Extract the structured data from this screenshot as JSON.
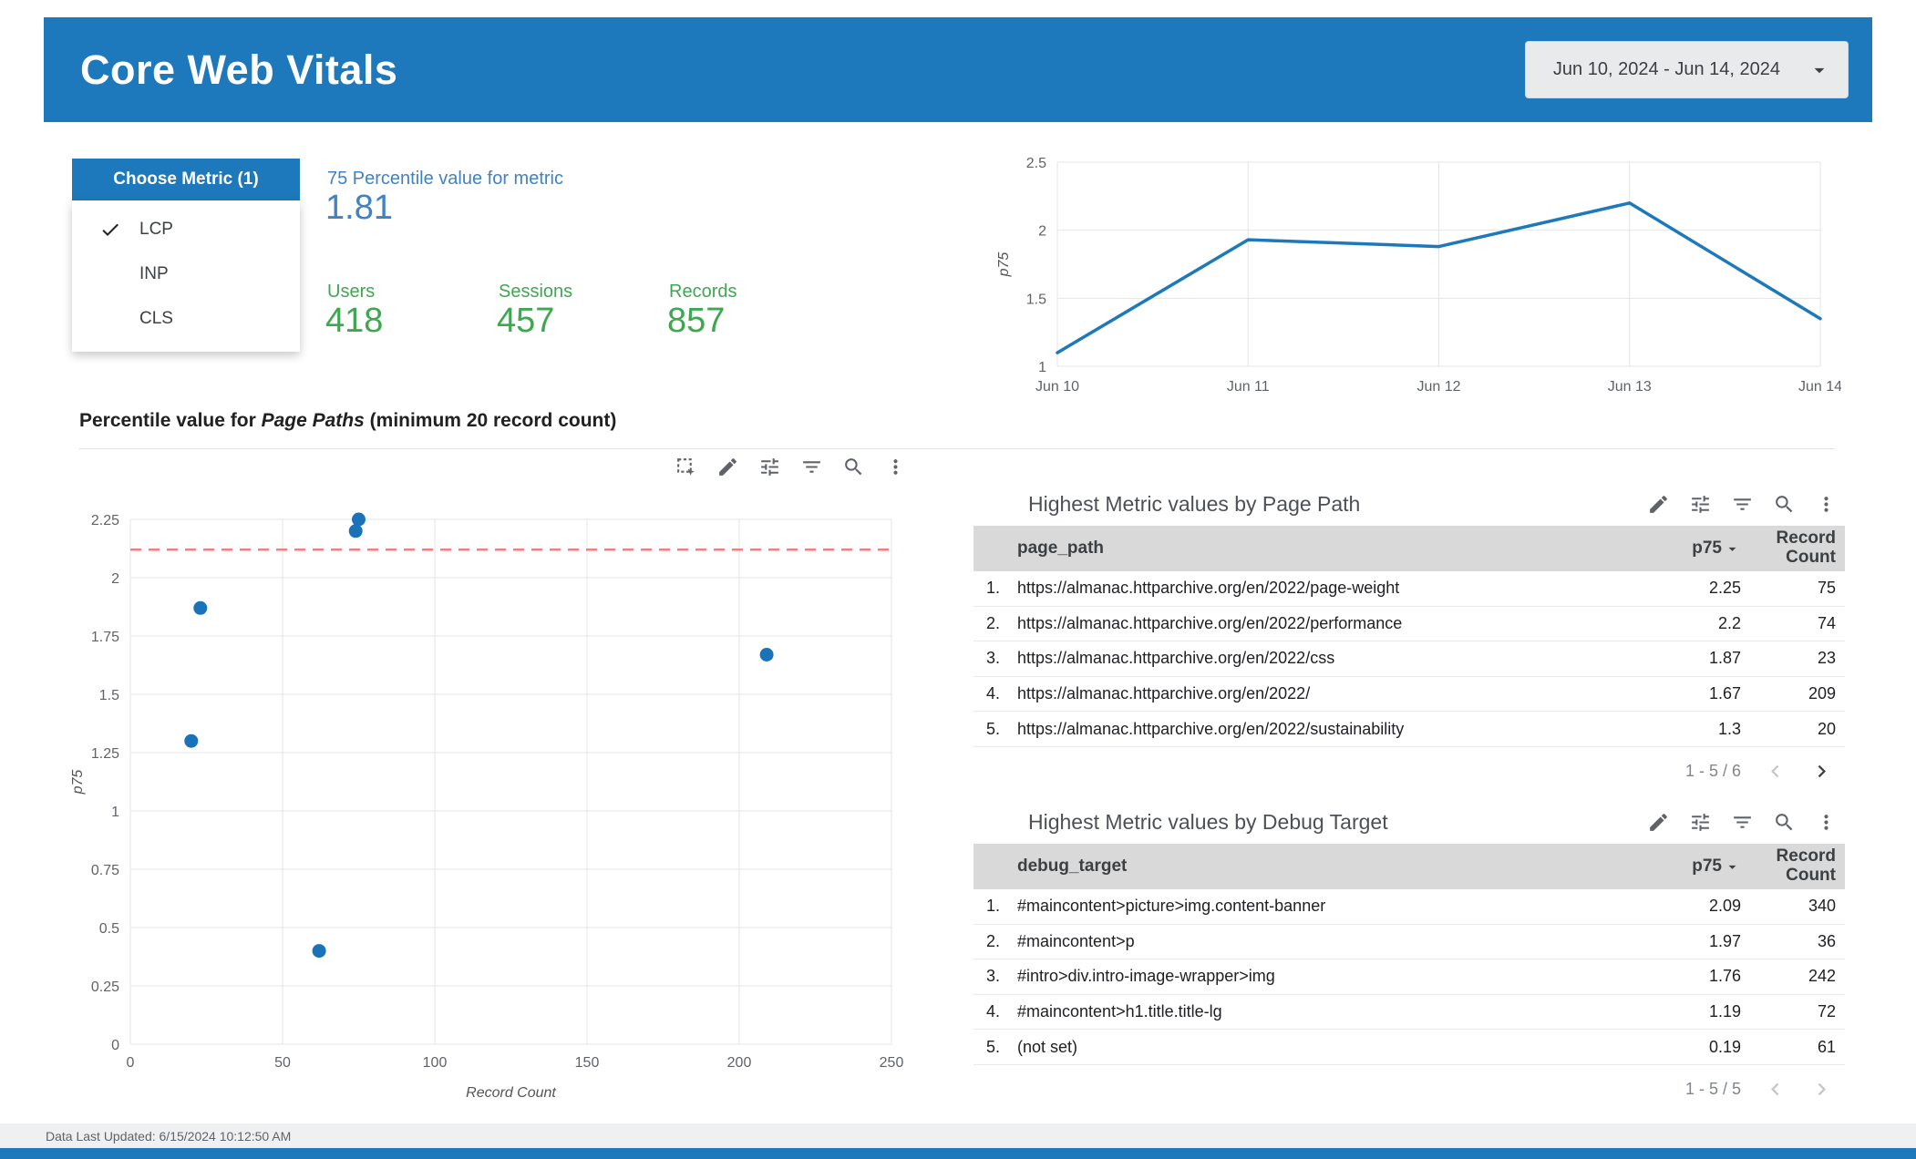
{
  "colors": {
    "header_blue": "#1d79bb",
    "accent_blue": "#4182c4",
    "green": "#3fa750",
    "line_blue": "#1d79bb",
    "point_blue": "#1a73b8",
    "ref_red": "#f0807f",
    "table_header_bg": "#d9d9d9"
  },
  "header": {
    "title": "Core Web Vitals",
    "date_range": "Jun 10, 2024 - Jun 14, 2024"
  },
  "metric_selector": {
    "label": "Choose Metric (1)",
    "options": [
      {
        "label": "LCP",
        "selected": true
      },
      {
        "label": "INP",
        "selected": false
      },
      {
        "label": "CLS",
        "selected": false
      }
    ]
  },
  "scorecards": {
    "percentile": {
      "label": "75 Percentile value for metric",
      "value": "1.81"
    },
    "users": {
      "label": "Users",
      "value": "418"
    },
    "sessions": {
      "label": "Sessions",
      "value": "457"
    },
    "records": {
      "label": "Records",
      "value": "857"
    }
  },
  "section": {
    "title_prefix": "Percentile value for ",
    "title_italic": "Page Paths",
    "title_suffix": " (minimum 20 record count)"
  },
  "chart_toolbar": [
    "marquee-select",
    "edit",
    "tune",
    "filter",
    "zoom",
    "more-vert"
  ],
  "table_toolbar": [
    "edit",
    "tune",
    "filter",
    "zoom",
    "more-vert"
  ],
  "chart_data": [
    {
      "type": "line",
      "title": "p75 by date",
      "x": [
        "Jun 10",
        "Jun 11",
        "Jun 12",
        "Jun 13",
        "Jun 14"
      ],
      "values": [
        1.1,
        1.93,
        1.88,
        2.2,
        1.35
      ],
      "ylabel": "p75",
      "ylim": [
        1,
        2.5
      ],
      "yticks": [
        2.5,
        2,
        1.5,
        1
      ],
      "grid": true,
      "legend": false
    },
    {
      "type": "scatter",
      "xlabel": "Record Count",
      "ylabel": "p75",
      "xlim": [
        0,
        250
      ],
      "ylim": [
        0,
        2.25
      ],
      "xticks": [
        0,
        50,
        100,
        150,
        200,
        250
      ],
      "yticks": [
        0,
        0.25,
        0.5,
        0.75,
        1,
        1.25,
        1.5,
        1.75,
        2,
        2.25
      ],
      "points": [
        {
          "x": 75,
          "y": 2.25
        },
        {
          "x": 74,
          "y": 2.2
        },
        {
          "x": 23,
          "y": 1.87
        },
        {
          "x": 209,
          "y": 1.67
        },
        {
          "x": 20,
          "y": 1.3
        },
        {
          "x": 62,
          "y": 0.4
        }
      ],
      "reference_line": {
        "y": 2.12,
        "style": "dashed"
      },
      "grid": true
    }
  ],
  "page_path_table": {
    "title": "Highest Metric values by Page Path",
    "columns": [
      "page_path",
      "p75",
      "Record Count"
    ],
    "rows": [
      [
        "https://almanac.httparchive.org/en/2022/page-weight",
        "2.25",
        "75"
      ],
      [
        "https://almanac.httparchive.org/en/2022/performance",
        "2.2",
        "74"
      ],
      [
        "https://almanac.httparchive.org/en/2022/css",
        "1.87",
        "23"
      ],
      [
        "https://almanac.httparchive.org/en/2022/",
        "1.67",
        "209"
      ],
      [
        "https://almanac.httparchive.org/en/2022/sustainability",
        "1.3",
        "20"
      ]
    ],
    "pagination": "1 - 5 / 6",
    "prev_enabled": false,
    "next_enabled": true
  },
  "debug_target_table": {
    "title": "Highest Metric values by Debug Target",
    "columns": [
      "debug_target",
      "p75",
      "Record Count"
    ],
    "rows": [
      [
        "#maincontent>picture>img.content-banner",
        "2.09",
        "340"
      ],
      [
        "#maincontent>p",
        "1.97",
        "36"
      ],
      [
        "#intro>div.intro-image-wrapper>img",
        "1.76",
        "242"
      ],
      [
        "#maincontent>h1.title.title-lg",
        "1.19",
        "72"
      ],
      [
        "(not set)",
        "0.19",
        "61"
      ]
    ],
    "pagination": "1 - 5 / 5",
    "prev_enabled": false,
    "next_enabled": false
  },
  "footer": {
    "last_updated": "Data Last Updated: 6/15/2024 10:12:50 AM"
  }
}
